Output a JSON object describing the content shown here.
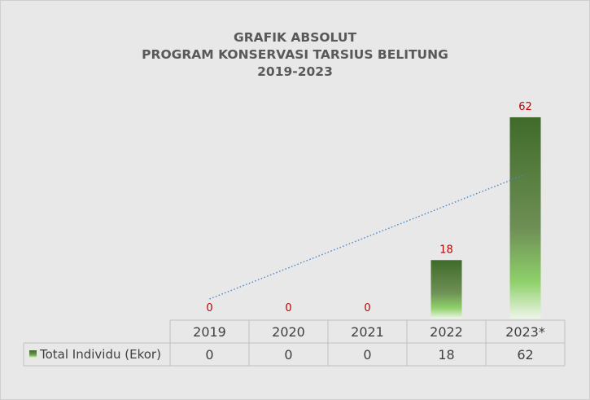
{
  "chart_data": {
    "type": "bar",
    "title_lines": [
      "GRAFIK ABSOLUT",
      "PROGRAM KONSERVASI TARSIUS BELITUNG",
      "2019-2023"
    ],
    "categories": [
      "2019",
      "2020",
      "2021",
      "2022",
      "2023*"
    ],
    "series": [
      {
        "name": "Total Individu (Ekor)",
        "values": [
          0,
          0,
          0,
          18,
          62
        ]
      }
    ],
    "trendline": {
      "type": "linear",
      "style": "dotted",
      "color": "#4a86c8"
    },
    "ylim": [
      0,
      65
    ],
    "data_labels": true,
    "data_table": true,
    "grid": false,
    "colors": {
      "bar_top": "#3f6b2a",
      "bar_mid": "#8fd16b",
      "label": "#c00000",
      "background": "#e8e8e8"
    }
  }
}
